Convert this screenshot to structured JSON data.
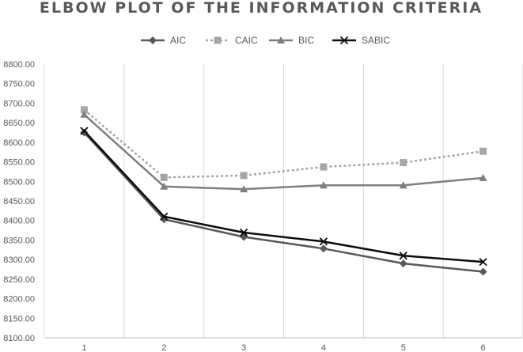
{
  "chart_data": {
    "type": "line",
    "title": "ELBOW PLOT OF THE INFORMATION CRITERIA",
    "xlabel": "",
    "ylabel": "",
    "categories": [
      "1",
      "2",
      "3",
      "4",
      "5",
      "6"
    ],
    "ylim": [
      8100,
      8800
    ],
    "yticks": [
      "8100.00",
      "8150.00",
      "8200.00",
      "8250.00",
      "8300.00",
      "8350.00",
      "8400.00",
      "8450.00",
      "8500.00",
      "8550.00",
      "8600.00",
      "8650.00",
      "8700.00",
      "8750.00",
      "8800.00"
    ],
    "grid": "vertical",
    "legend": "top",
    "series": [
      {
        "name": "AIC",
        "values": [
          8625,
          8403,
          8358,
          8328,
          8290,
          8269
        ],
        "color": "#595959",
        "dash": "solid",
        "marker": "diamond"
      },
      {
        "name": "CAIC",
        "values": [
          8683,
          8510,
          8515,
          8537,
          8548,
          8577
        ],
        "color": "#a6a6a6",
        "dash": "dotted",
        "marker": "square"
      },
      {
        "name": "BIC",
        "values": [
          8671,
          8487,
          8480,
          8490,
          8490,
          8509
        ],
        "color": "#7f7f7f",
        "dash": "solid",
        "marker": "triangle"
      },
      {
        "name": "SABIC",
        "values": [
          8629,
          8410,
          8369,
          8346,
          8310,
          8294
        ],
        "color": "#0d0d0d",
        "dash": "solid",
        "marker": "x"
      }
    ]
  }
}
